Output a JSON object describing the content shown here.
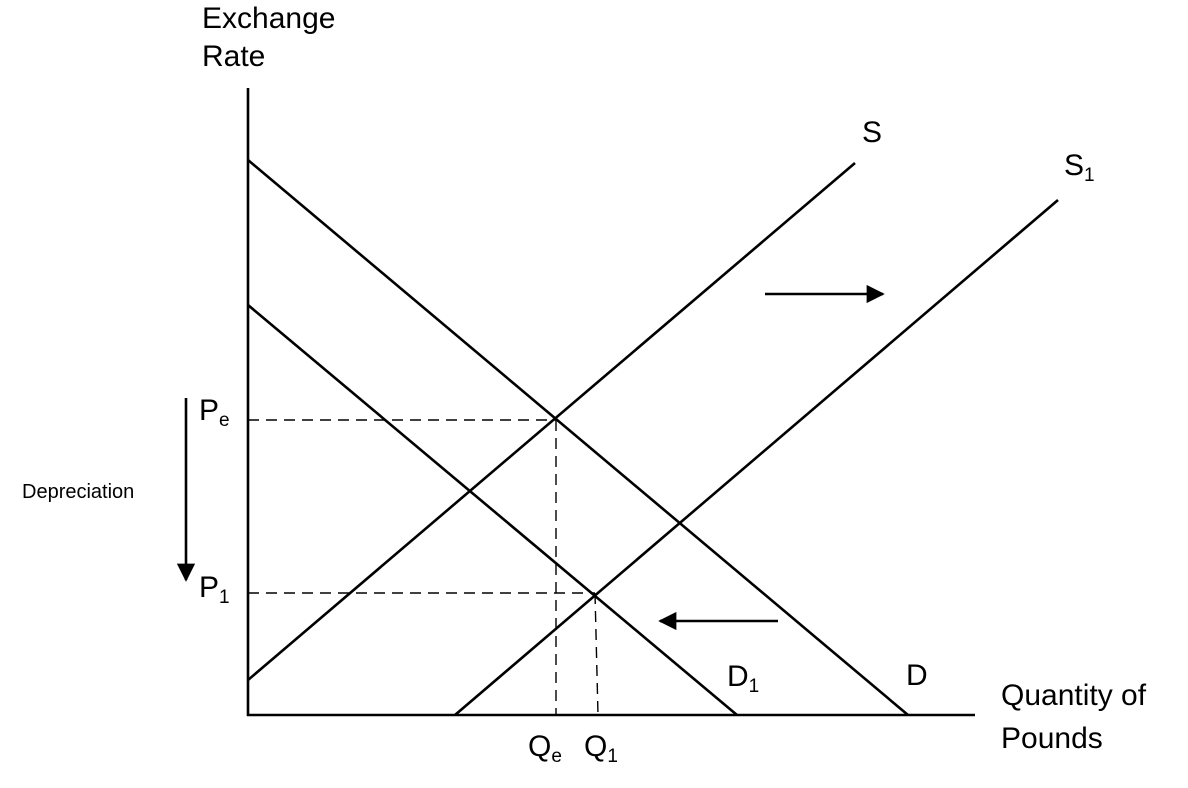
{
  "y_axis_label": [
    "Exchange",
    "Rate"
  ],
  "x_axis_label": [
    "Quantity of",
    "Pounds"
  ],
  "curves": {
    "supply": {
      "main": "S",
      "sub": ""
    },
    "supply_new": {
      "main": "S",
      "sub": "1"
    },
    "demand": {
      "main": "D",
      "sub": ""
    },
    "demand_new": {
      "main": "D",
      "sub": "1"
    }
  },
  "price_labels": {
    "pe": {
      "main": "P",
      "sub": "e"
    },
    "p1": {
      "main": "P",
      "sub": "1"
    }
  },
  "quantity_labels": {
    "qe": {
      "main": "Q",
      "sub": "e"
    },
    "q1": {
      "main": "Q",
      "sub": "1"
    }
  },
  "annotation": "Depreciation",
  "shifts": {
    "supply": "right",
    "demand": "left"
  }
}
